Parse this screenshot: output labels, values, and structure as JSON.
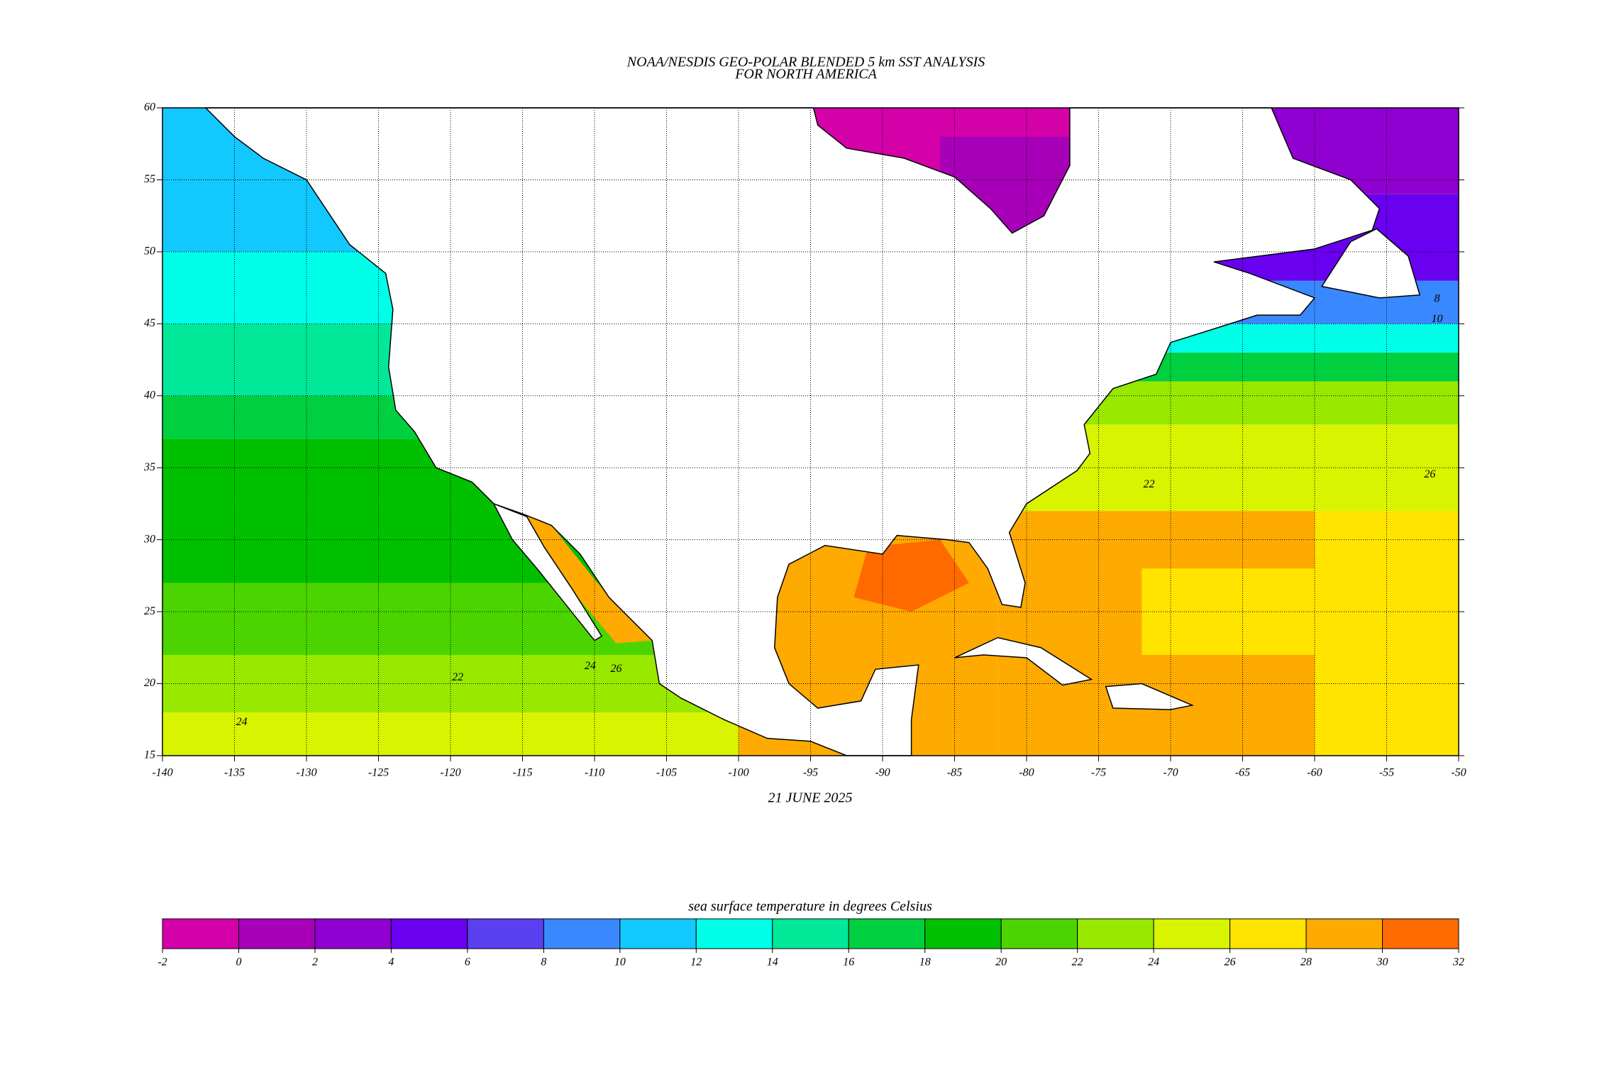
{
  "title": [
    "NOAA/NESDIS GEO-POLAR BLENDED 5 km SST ANALYSIS",
    "FOR NORTH AMERICA"
  ],
  "date": "21 JUNE 2025",
  "map": {
    "xlim": [
      -140,
      -50
    ],
    "ylim": [
      15,
      60
    ],
    "xticks": [
      -140,
      -135,
      -130,
      -125,
      -120,
      -115,
      -110,
      -105,
      -100,
      -95,
      -90,
      -85,
      -80,
      -75,
      -70,
      -65,
      -60,
      -55,
      -50
    ],
    "yticks": [
      15,
      20,
      25,
      30,
      35,
      40,
      45,
      50,
      55,
      60
    ],
    "grid": true
  },
  "contour_labels": [
    {
      "lon": -134.5,
      "lat": 17.3,
      "value": 24
    },
    {
      "lon": -119.5,
      "lat": 20.4,
      "value": 22
    },
    {
      "lon": -110.3,
      "lat": 21.2,
      "value": 24
    },
    {
      "lon": -108.5,
      "lat": 21.0,
      "value": 26
    },
    {
      "lon": -52,
      "lat": 34.5,
      "value": 26
    },
    {
      "lon": -51.5,
      "lat": 45.3,
      "value": 10
    },
    {
      "lon": -51.5,
      "lat": 46.7,
      "value": 8
    },
    {
      "lon": -71.5,
      "lat": 33.8,
      "value": 22
    }
  ],
  "colorbar": {
    "label": "sea surface temperature in degrees Celsius",
    "ticks": [
      -2,
      0,
      2,
      4,
      6,
      8,
      10,
      12,
      14,
      16,
      18,
      20,
      22,
      24,
      26,
      28,
      30,
      32
    ],
    "colors": [
      "#d400a8",
      "#a800b8",
      "#9000d0",
      "#6a00f0",
      "#5a40f0",
      "#3a88ff",
      "#12c8ff",
      "#00ffe8",
      "#00e898",
      "#00d040",
      "#00c000",
      "#4cd400",
      "#98e800",
      "#d8f400",
      "#ffe400",
      "#ffaa00",
      "#ff6a00"
    ]
  }
}
